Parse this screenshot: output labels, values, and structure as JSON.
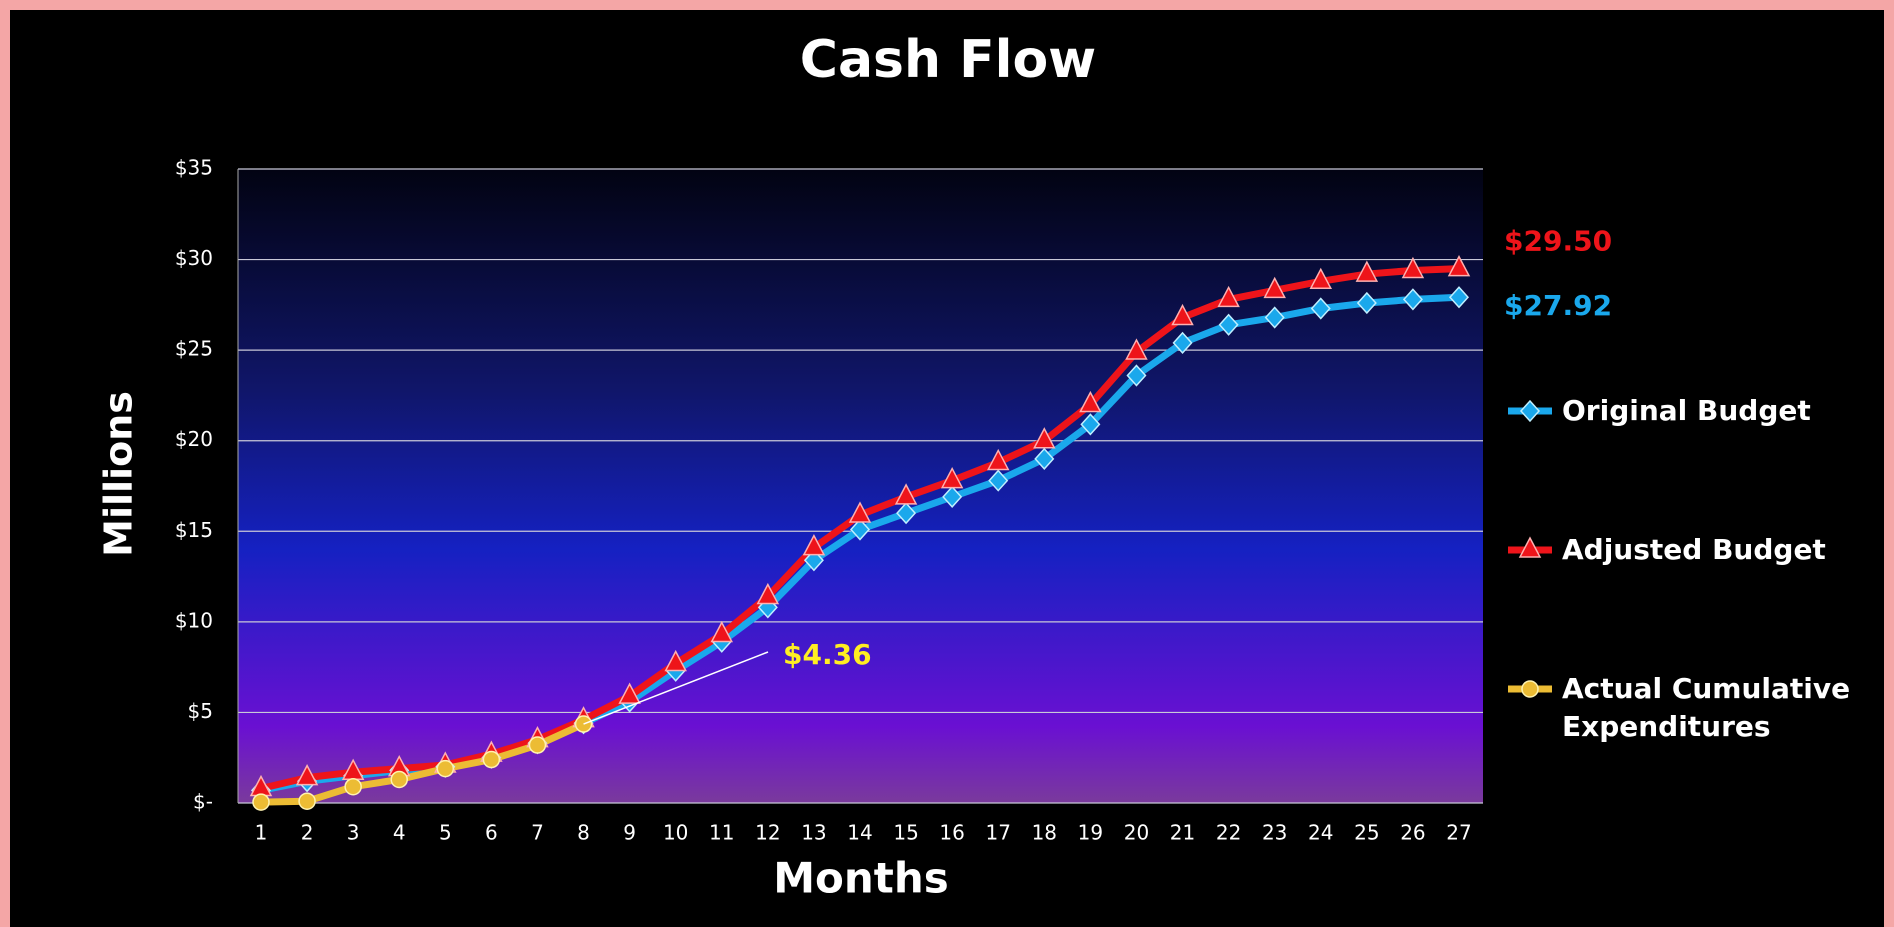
{
  "chart_data": {
    "type": "line",
    "title": "Cash Flow",
    "x_label": "Months",
    "y_label": "Millions",
    "categories": [
      "1",
      "2",
      "3",
      "4",
      "5",
      "6",
      "7",
      "8",
      "9",
      "10",
      "11",
      "12",
      "13",
      "14",
      "15",
      "16",
      "17",
      "18",
      "19",
      "20",
      "21",
      "22",
      "23",
      "24",
      "25",
      "26",
      "27"
    ],
    "series": [
      {
        "name": "Original Budget",
        "color": "#1aa8ec",
        "marker": "diamond",
        "values": [
          0.7,
          1.2,
          1.5,
          1.8,
          2.0,
          2.5,
          3.3,
          4.4,
          5.6,
          7.3,
          8.9,
          10.8,
          13.4,
          15.1,
          16.0,
          16.9,
          17.8,
          19.0,
          20.9,
          23.6,
          25.4,
          26.4,
          26.8,
          27.3,
          27.6,
          27.8,
          27.92
        ]
      },
      {
        "name": "Adjusted Budget",
        "color": "#ee141a",
        "marker": "triangle",
        "values": [
          0.8,
          1.4,
          1.7,
          1.9,
          2.1,
          2.7,
          3.5,
          4.6,
          5.9,
          7.7,
          9.3,
          11.4,
          14.1,
          15.9,
          16.9,
          17.8,
          18.8,
          20.0,
          22.0,
          24.9,
          26.8,
          27.8,
          28.3,
          28.8,
          29.2,
          29.4,
          29.5
        ]
      },
      {
        "name": "Actual Cumulative Expenditures",
        "color": "#ecbc34",
        "marker": "circle",
        "values": [
          0.05,
          0.1,
          0.9,
          1.3,
          1.9,
          2.4,
          3.2,
          4.36,
          null,
          null,
          null,
          null,
          null,
          null,
          null,
          null,
          null,
          null,
          null,
          null,
          null,
          null,
          null,
          null,
          null,
          null,
          null
        ]
      }
    ],
    "annotations": [
      {
        "text": "$29.50",
        "series": 1,
        "index": 26
      },
      {
        "text": "$27.92",
        "series": 0,
        "index": 26
      },
      {
        "text": "$4.36",
        "series": 2,
        "index": 7
      }
    ],
    "ylim": [
      0,
      35
    ],
    "yticks": [
      {
        "value": 0,
        "label": "$-"
      },
      {
        "value": 5,
        "label": "$5"
      },
      {
        "value": 10,
        "label": "$10"
      },
      {
        "value": 15,
        "label": "$15"
      },
      {
        "value": 20,
        "label": "$20"
      },
      {
        "value": 25,
        "label": "$25"
      },
      {
        "value": 30,
        "label": "$30"
      },
      {
        "value": 35,
        "label": "$35"
      }
    ],
    "grid": true,
    "legend": "right"
  }
}
